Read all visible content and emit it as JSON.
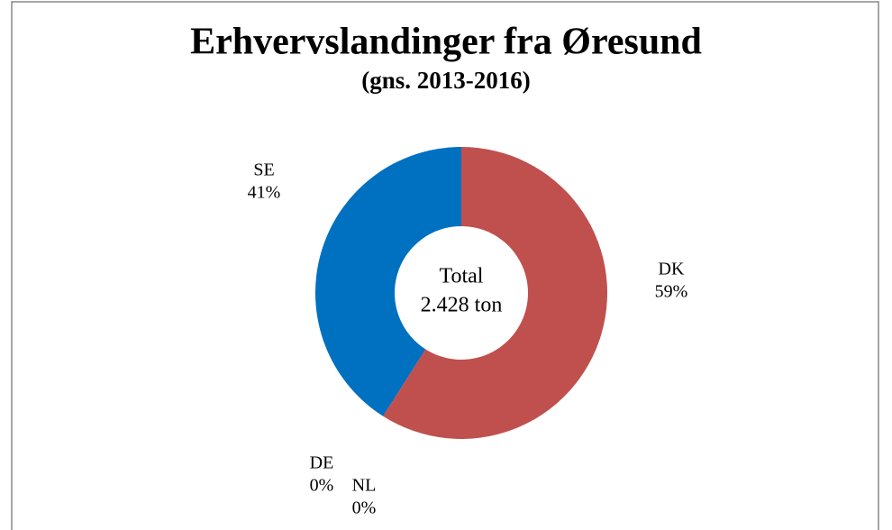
{
  "chart_data": {
    "type": "pie",
    "title": "Erhvervslandinger fra Øresund",
    "subtitle": "(gns. 2013-2016)",
    "center_text": [
      "Total",
      "2.428 ton"
    ],
    "categories": [
      "DK",
      "NL",
      "DE",
      "SE"
    ],
    "values": [
      59,
      0,
      0,
      41
    ],
    "value_labels": [
      "59%",
      "0%",
      "0%",
      "41%"
    ],
    "colors": [
      "#c0504d",
      "#9bbb59",
      "#f79646",
      "#0070c0"
    ]
  }
}
